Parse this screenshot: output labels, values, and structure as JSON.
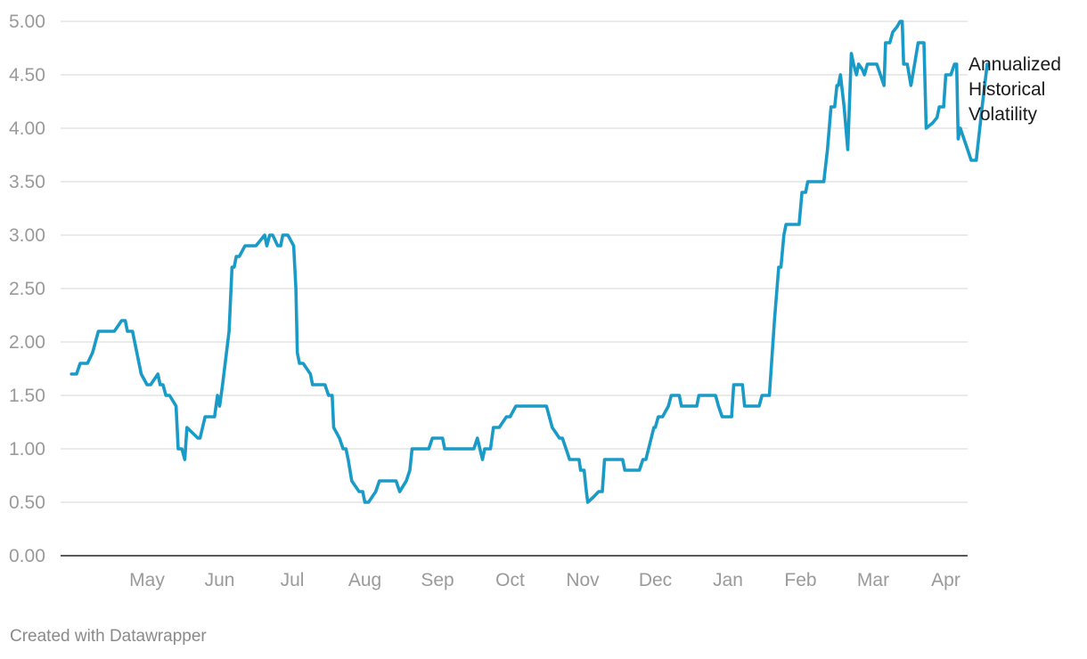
{
  "chart_data": {
    "type": "line",
    "x_unit": "month",
    "y_ticks": [
      "0.00",
      "0.50",
      "1.00",
      "1.50",
      "2.00",
      "2.50",
      "3.00",
      "3.50",
      "4.00",
      "4.50",
      "5.00"
    ],
    "ylim": [
      0,
      5
    ],
    "xlim": [
      3.7,
      16.4
    ],
    "x_tick_labels": [
      {
        "label": "May",
        "x": 5
      },
      {
        "label": "Jun",
        "x": 6
      },
      {
        "label": "Jul",
        "x": 7
      },
      {
        "label": "Aug",
        "x": 8
      },
      {
        "label": "Sep",
        "x": 9
      },
      {
        "label": "Oct",
        "x": 10
      },
      {
        "label": "Nov",
        "x": 11
      },
      {
        "label": "Dec",
        "x": 12
      },
      {
        "label": "Jan",
        "x": 13
      },
      {
        "label": "Feb",
        "x": 14
      },
      {
        "label": "Mar",
        "x": 15
      },
      {
        "label": "Apr",
        "x": 16
      }
    ],
    "grid": true,
    "series": [
      {
        "name": "Annualized Historical Volatility",
        "label_lines": [
          "Annualized",
          "Historical",
          "Volatility"
        ],
        "color": "#1a9bc7",
        "points": [
          [
            3.96,
            1.7
          ],
          [
            4.03,
            1.7
          ],
          [
            4.08,
            1.8
          ],
          [
            4.18,
            1.8
          ],
          [
            4.25,
            1.9
          ],
          [
            4.33,
            2.1
          ],
          [
            4.55,
            2.1
          ],
          [
            4.65,
            2.2
          ],
          [
            4.7,
            2.2
          ],
          [
            4.73,
            2.1
          ],
          [
            4.8,
            2.1
          ],
          [
            4.92,
            1.7
          ],
          [
            5.0,
            1.6
          ],
          [
            5.05,
            1.6
          ],
          [
            5.15,
            1.7
          ],
          [
            5.18,
            1.6
          ],
          [
            5.22,
            1.6
          ],
          [
            5.26,
            1.5
          ],
          [
            5.31,
            1.5
          ],
          [
            5.4,
            1.4
          ],
          [
            5.43,
            1.0
          ],
          [
            5.48,
            1.0
          ],
          [
            5.52,
            0.9
          ],
          [
            5.55,
            1.2
          ],
          [
            5.7,
            1.1
          ],
          [
            5.73,
            1.1
          ],
          [
            5.8,
            1.3
          ],
          [
            5.9,
            1.3
          ],
          [
            5.93,
            1.3
          ],
          [
            5.97,
            1.5
          ],
          [
            6.0,
            1.4
          ],
          [
            6.04,
            1.6
          ],
          [
            6.13,
            2.1
          ],
          [
            6.17,
            2.7
          ],
          [
            6.2,
            2.7
          ],
          [
            6.23,
            2.8
          ],
          [
            6.27,
            2.8
          ],
          [
            6.35,
            2.9
          ],
          [
            6.5,
            2.9
          ],
          [
            6.62,
            3.0
          ],
          [
            6.65,
            2.9
          ],
          [
            6.69,
            3.0
          ],
          [
            6.73,
            3.0
          ],
          [
            6.8,
            2.9
          ],
          [
            6.84,
            2.9
          ],
          [
            6.87,
            3.0
          ],
          [
            6.94,
            3.0
          ],
          [
            7.02,
            2.9
          ],
          [
            7.05,
            2.5
          ],
          [
            7.07,
            1.9
          ],
          [
            7.1,
            1.8
          ],
          [
            7.15,
            1.8
          ],
          [
            7.25,
            1.7
          ],
          [
            7.28,
            1.6
          ],
          [
            7.45,
            1.6
          ],
          [
            7.5,
            1.5
          ],
          [
            7.55,
            1.5
          ],
          [
            7.57,
            1.2
          ],
          [
            7.65,
            1.1
          ],
          [
            7.7,
            1.0
          ],
          [
            7.74,
            1.0
          ],
          [
            7.77,
            0.9
          ],
          [
            7.82,
            0.7
          ],
          [
            7.92,
            0.6
          ],
          [
            7.97,
            0.6
          ],
          [
            8.0,
            0.5
          ],
          [
            8.05,
            0.5
          ],
          [
            8.15,
            0.6
          ],
          [
            8.2,
            0.7
          ],
          [
            8.43,
            0.7
          ],
          [
            8.48,
            0.6
          ],
          [
            8.57,
            0.7
          ],
          [
            8.62,
            0.8
          ],
          [
            8.65,
            1.0
          ],
          [
            8.88,
            1.0
          ],
          [
            8.93,
            1.1
          ],
          [
            9.07,
            1.1
          ],
          [
            9.1,
            1.0
          ],
          [
            9.5,
            1.0
          ],
          [
            9.55,
            1.1
          ],
          [
            9.62,
            0.9
          ],
          [
            9.65,
            1.0
          ],
          [
            9.73,
            1.0
          ],
          [
            9.77,
            1.2
          ],
          [
            9.85,
            1.2
          ],
          [
            9.95,
            1.3
          ],
          [
            10.0,
            1.3
          ],
          [
            10.08,
            1.4
          ],
          [
            10.5,
            1.4
          ],
          [
            10.58,
            1.2
          ],
          [
            10.68,
            1.1
          ],
          [
            10.72,
            1.1
          ],
          [
            10.77,
            1.0
          ],
          [
            10.82,
            0.9
          ],
          [
            10.95,
            0.9
          ],
          [
            10.97,
            0.8
          ],
          [
            11.02,
            0.8
          ],
          [
            11.05,
            0.6
          ],
          [
            11.07,
            0.5
          ],
          [
            11.15,
            0.55
          ],
          [
            11.22,
            0.6
          ],
          [
            11.27,
            0.6
          ],
          [
            11.3,
            0.9
          ],
          [
            11.55,
            0.9
          ],
          [
            11.58,
            0.8
          ],
          [
            11.78,
            0.8
          ],
          [
            11.83,
            0.9
          ],
          [
            11.87,
            0.9
          ],
          [
            11.98,
            1.2
          ],
          [
            12.0,
            1.2
          ],
          [
            12.04,
            1.3
          ],
          [
            12.1,
            1.3
          ],
          [
            12.18,
            1.4
          ],
          [
            12.22,
            1.5
          ],
          [
            12.33,
            1.5
          ],
          [
            12.36,
            1.4
          ],
          [
            12.57,
            1.4
          ],
          [
            12.6,
            1.5
          ],
          [
            12.83,
            1.5
          ],
          [
            12.87,
            1.4
          ],
          [
            12.92,
            1.3
          ],
          [
            13.05,
            1.3
          ],
          [
            13.08,
            1.6
          ],
          [
            13.2,
            1.6
          ],
          [
            13.23,
            1.4
          ],
          [
            13.43,
            1.4
          ],
          [
            13.47,
            1.5
          ],
          [
            13.57,
            1.5
          ],
          [
            13.64,
            2.2
          ],
          [
            13.7,
            2.7
          ],
          [
            13.73,
            2.7
          ],
          [
            13.77,
            3.0
          ],
          [
            13.8,
            3.1
          ],
          [
            13.98,
            3.1
          ],
          [
            14.02,
            3.4
          ],
          [
            14.07,
            3.4
          ],
          [
            14.1,
            3.5
          ],
          [
            14.25,
            3.5
          ],
          [
            14.32,
            3.5
          ],
          [
            14.37,
            3.8
          ],
          [
            14.42,
            4.2
          ],
          [
            14.47,
            4.2
          ],
          [
            14.5,
            4.4
          ],
          [
            14.52,
            4.4
          ],
          [
            14.55,
            4.5
          ],
          [
            14.6,
            4.2
          ],
          [
            14.65,
            3.8
          ],
          [
            14.7,
            4.7
          ],
          [
            14.73,
            4.6
          ],
          [
            14.77,
            4.5
          ],
          [
            14.8,
            4.6
          ],
          [
            14.85,
            4.55
          ],
          [
            14.88,
            4.5
          ],
          [
            14.92,
            4.6
          ],
          [
            15.05,
            4.6
          ],
          [
            15.15,
            4.4
          ],
          [
            15.17,
            4.8
          ],
          [
            15.23,
            4.8
          ],
          [
            15.27,
            4.9
          ],
          [
            15.33,
            4.95
          ],
          [
            15.37,
            5.0
          ],
          [
            15.4,
            5.0
          ],
          [
            15.42,
            4.6
          ],
          [
            15.47,
            4.6
          ],
          [
            15.52,
            4.4
          ],
          [
            15.57,
            4.6
          ],
          [
            15.62,
            4.8
          ],
          [
            15.7,
            4.8
          ],
          [
            15.73,
            4.0
          ],
          [
            15.82,
            4.05
          ],
          [
            15.88,
            4.1
          ],
          [
            15.91,
            4.2
          ],
          [
            15.97,
            4.2
          ],
          [
            16.0,
            4.5
          ],
          [
            16.07,
            4.5
          ],
          [
            16.12,
            4.6
          ],
          [
            16.15,
            4.6
          ],
          [
            16.17,
            3.9
          ],
          [
            16.2,
            4.0
          ],
          [
            16.25,
            3.9
          ],
          [
            16.3,
            3.8
          ],
          [
            16.35,
            3.7
          ],
          [
            16.42,
            3.7
          ],
          [
            16.5,
            4.2
          ],
          [
            16.57,
            4.6
          ]
        ]
      }
    ]
  },
  "footer": {
    "credit": "Created with Datawrapper"
  }
}
